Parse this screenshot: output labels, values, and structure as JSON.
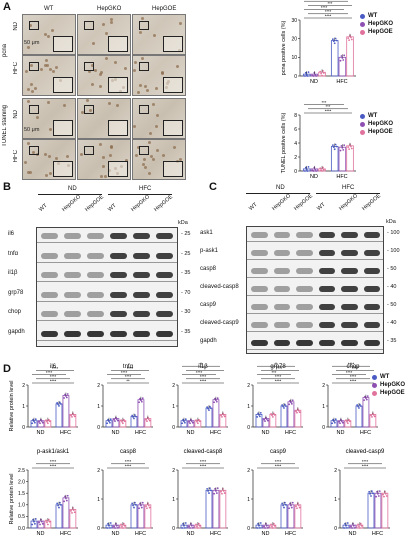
{
  "panels": {
    "A": "A",
    "B": "B",
    "C": "C",
    "D": "D"
  },
  "panel_a": {
    "columns": [
      "WT",
      "HepGKO",
      "HepGOE"
    ],
    "rows": [
      "ND",
      "HFC",
      "ND",
      "HFC"
    ],
    "groups": [
      "pcna",
      "TUNEL staining"
    ],
    "scale_bar": "50 μm"
  },
  "legend": {
    "items": [
      "WT",
      "HepGKO",
      "HepGOE"
    ],
    "colors": [
      "#4a5bc4",
      "#8e4fb3",
      "#e0739d"
    ]
  },
  "panel_b": {
    "group_nd": "ND",
    "group_hfc": "HFC",
    "lanes": [
      "WT",
      "HepGKO",
      "HepGOE",
      "WT",
      "HepGKO",
      "HepGOE"
    ],
    "kda": "kDa",
    "rows": [
      {
        "name": "il6",
        "kda": "25"
      },
      {
        "name": "tnfα",
        "kda": "25"
      },
      {
        "name": "il1β",
        "kda": "35"
      },
      {
        "name": "grp78",
        "kda": "70"
      },
      {
        "name": "chop",
        "kda": "30"
      },
      {
        "name": "gapdh",
        "kda": "35"
      }
    ]
  },
  "panel_c": {
    "group_nd": "ND",
    "group_hfc": "HFC",
    "lanes": [
      "WT",
      "HepGKO",
      "HepGOE",
      "WT",
      "HepGKO",
      "HepGOE"
    ],
    "kda": "kDa",
    "rows": [
      {
        "name": "ask1",
        "kda": "100"
      },
      {
        "name": "p-ask1",
        "kda": "100"
      },
      {
        "name": "casp8",
        "kda": "50"
      },
      {
        "name": "cleaved-casp8",
        "kda": "40"
      },
      {
        "name": "casp9",
        "kda": "50"
      },
      {
        "name": "cleaved-casp9",
        "kda": "40"
      },
      {
        "name": "gapdh",
        "kda": "35"
      }
    ]
  },
  "chart_data": [
    {
      "type": "bar",
      "panel": "A",
      "ylabel": "pcna positive cells (%)",
      "categories": [
        "ND",
        "HFC"
      ],
      "ylim": [
        0,
        30
      ],
      "ticks": [
        0,
        10,
        20,
        30
      ],
      "series": [
        {
          "name": "WT",
          "values": [
            1,
            19
          ]
        },
        {
          "name": "HepGKO",
          "values": [
            1,
            10
          ]
        },
        {
          "name": "HepGOE",
          "values": [
            2,
            21
          ]
        }
      ],
      "significance": [
        "****",
        "****",
        "****",
        "***",
        "**"
      ]
    },
    {
      "type": "bar",
      "panel": "A",
      "ylabel": "TUNEL positive cells (%)",
      "categories": [
        "ND",
        "HFC"
      ],
      "ylim": [
        0,
        8
      ],
      "ticks": [
        0,
        2,
        4,
        6,
        8
      ],
      "series": [
        {
          "name": "WT",
          "values": [
            0.3,
            3.5
          ]
        },
        {
          "name": "HepGKO",
          "values": [
            0.3,
            3.4
          ]
        },
        {
          "name": "HepGOE",
          "values": [
            0.3,
            3.6
          ]
        }
      ],
      "significance": [
        "****",
        "***",
        "***"
      ]
    },
    {
      "type": "bar",
      "panel": "D",
      "title": "il6",
      "ylabel": "Relative protein level",
      "categories": [
        "ND",
        "HFC"
      ],
      "ylim": [
        0,
        2
      ],
      "ticks": [
        0,
        1,
        2
      ],
      "series": [
        {
          "name": "WT",
          "values": [
            0.3,
            1.1
          ]
        },
        {
          "name": "HepGKO",
          "values": [
            0.3,
            1.5
          ]
        },
        {
          "name": "HepGOE",
          "values": [
            0.3,
            0.6
          ]
        }
      ],
      "significance": [
        "****",
        "****",
        "****",
        "****"
      ]
    },
    {
      "type": "bar",
      "panel": "D",
      "title": "tnfα",
      "categories": [
        "ND",
        "HFC"
      ],
      "ylim": [
        0,
        2
      ],
      "ticks": [
        0,
        1,
        2
      ],
      "series": [
        {
          "name": "WT",
          "values": [
            0.3,
            0.5
          ]
        },
        {
          "name": "HepGKO",
          "values": [
            0.4,
            1.3
          ]
        },
        {
          "name": "HepGOE",
          "values": [
            0.3,
            0.4
          ]
        }
      ],
      "significance": [
        "**",
        "****",
        "****",
        "****"
      ]
    },
    {
      "type": "bar",
      "panel": "D",
      "title": "il1β",
      "categories": [
        "ND",
        "HFC"
      ],
      "ylim": [
        0,
        2
      ],
      "ticks": [
        0,
        1,
        2
      ],
      "series": [
        {
          "name": "WT",
          "values": [
            0.3,
            0.9
          ]
        },
        {
          "name": "HepGKO",
          "values": [
            0.3,
            1.3
          ]
        },
        {
          "name": "HepGOE",
          "values": [
            0.3,
            0.6
          ]
        }
      ],
      "significance": [
        "****",
        "****",
        "****",
        "*",
        "**"
      ]
    },
    {
      "type": "bar",
      "panel": "D",
      "title": "grp78",
      "categories": [
        "ND",
        "HFC"
      ],
      "ylim": [
        0,
        2
      ],
      "ticks": [
        0,
        1,
        2
      ],
      "series": [
        {
          "name": "WT",
          "values": [
            0.6,
            1.0
          ]
        },
        {
          "name": "HepGKO",
          "values": [
            0.4,
            1.2
          ]
        },
        {
          "name": "HepGOE",
          "values": [
            0.6,
            0.8
          ]
        }
      ],
      "significance": [
        "****",
        "****",
        "***",
        "***",
        "**"
      ]
    },
    {
      "type": "bar",
      "panel": "D",
      "title": "chop",
      "categories": [
        "ND",
        "HFC"
      ],
      "ylim": [
        0,
        2
      ],
      "ticks": [
        0,
        1,
        2
      ],
      "series": [
        {
          "name": "WT",
          "values": [
            0.3,
            1.0
          ]
        },
        {
          "name": "HepGKO",
          "values": [
            0.3,
            1.4
          ]
        },
        {
          "name": "HepGOE",
          "values": [
            0.3,
            0.6
          ]
        }
      ],
      "significance": [
        "****",
        "****",
        "****",
        "****",
        "****"
      ]
    },
    {
      "type": "bar",
      "panel": "D",
      "title": "p-ask1/ask1",
      "ylabel": "Relative protein level",
      "categories": [
        "ND",
        "HFC"
      ],
      "ylim": [
        0,
        2.5
      ],
      "ticks": [
        0.0,
        0.5,
        1.0,
        1.5,
        2.0,
        2.5
      ],
      "series": [
        {
          "name": "WT",
          "values": [
            0.3,
            1.0
          ]
        },
        {
          "name": "HepGKO",
          "values": [
            0.3,
            1.3
          ]
        },
        {
          "name": "HepGOE",
          "values": [
            0.3,
            0.8
          ]
        }
      ],
      "significance": [
        "****",
        "****"
      ]
    },
    {
      "type": "bar",
      "panel": "D",
      "title": "casp8",
      "categories": [
        "ND",
        "HFC"
      ],
      "ylim": [
        0,
        2
      ],
      "ticks": [
        0,
        1,
        2
      ],
      "series": [
        {
          "name": "WT",
          "values": [
            0.1,
            0.8
          ]
        },
        {
          "name": "HepGKO",
          "values": [
            0.1,
            0.8
          ]
        },
        {
          "name": "HepGOE",
          "values": [
            0.1,
            0.8
          ]
        }
      ],
      "significance": [
        "****",
        "****"
      ]
    },
    {
      "type": "bar",
      "panel": "D",
      "title": "cleaved-casp8",
      "categories": [
        "ND",
        "HFC"
      ],
      "ylim": [
        0,
        2
      ],
      "ticks": [
        0,
        1,
        2
      ],
      "series": [
        {
          "name": "WT",
          "values": [
            0.1,
            1.3
          ]
        },
        {
          "name": "HepGKO",
          "values": [
            0.1,
            1.3
          ]
        },
        {
          "name": "HepGOE",
          "values": [
            0.1,
            1.3
          ]
        }
      ],
      "significance": [
        "****",
        "****"
      ]
    },
    {
      "type": "bar",
      "panel": "D",
      "title": "casp9",
      "categories": [
        "ND",
        "HFC"
      ],
      "ylim": [
        0,
        2
      ],
      "ticks": [
        0,
        1,
        2
      ],
      "series": [
        {
          "name": "WT",
          "values": [
            0.1,
            0.8
          ]
        },
        {
          "name": "HepGKO",
          "values": [
            0.1,
            0.8
          ]
        },
        {
          "name": "HepGOE",
          "values": [
            0.1,
            0.8
          ]
        }
      ],
      "significance": [
        "****",
        "****"
      ]
    },
    {
      "type": "bar",
      "panel": "D",
      "title": "cleaved-casp9",
      "categories": [
        "ND",
        "HFC"
      ],
      "ylim": [
        0,
        2
      ],
      "ticks": [
        0,
        1,
        2
      ],
      "series": [
        {
          "name": "WT",
          "values": [
            0.1,
            1.2
          ]
        },
        {
          "name": "HepGKO",
          "values": [
            0.1,
            1.2
          ]
        },
        {
          "name": "HepGOE",
          "values": [
            0.1,
            1.2
          ]
        }
      ],
      "significance": [
        "****",
        "****"
      ]
    }
  ]
}
